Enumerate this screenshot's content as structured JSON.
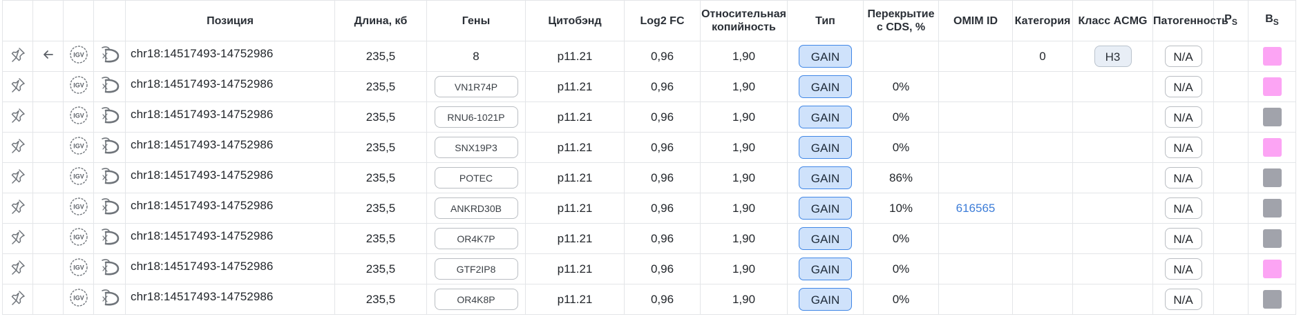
{
  "columns": {
    "position": "Позиция",
    "length": "Длина, кб",
    "genes": "Гены",
    "cytoband": "Цитобэнд",
    "log2fc": "Log2 FC",
    "rel_copy_1": "Относительная",
    "rel_copy_2": "копийность",
    "type": "Тип",
    "cds_1": "Перекрытие",
    "cds_2": "с CDS, %",
    "omim": "OMIM ID",
    "category": "Категория",
    "acmg": "Класс ACMG",
    "pathogenicity": "Патогенность",
    "ps_main": "P",
    "ps_sub": "S",
    "bs_main": "B",
    "bs_sub": "S"
  },
  "colors": {
    "pink": "#fca4f4",
    "gray": "#a1a3ab",
    "type_bg": "#cfe2fb",
    "type_border": "#3f86e6",
    "link": "#3d7dd8"
  },
  "rows": [
    {
      "position": "chr18:14517493-14752986",
      "length": "235,5",
      "gene": "8",
      "cytoband": "p11.21",
      "log2fc": "0,96",
      "relcopy": "1,90",
      "type": "GAIN",
      "cds": "",
      "omim": "",
      "category": "0",
      "acmg": "H3",
      "pathogenicity": "N/A",
      "bs_color": "pink",
      "back_arrow": true
    },
    {
      "position": "chr18:14517493-14752986",
      "length": "235,5",
      "gene": "VN1R74P",
      "cytoband": "p11.21",
      "log2fc": "0,96",
      "relcopy": "1,90",
      "type": "GAIN",
      "cds": "0%",
      "omim": "",
      "category": "",
      "acmg": "",
      "pathogenicity": "N/A",
      "bs_color": "pink"
    },
    {
      "position": "chr18:14517493-14752986",
      "length": "235,5",
      "gene": "RNU6-1021P",
      "cytoband": "p11.21",
      "log2fc": "0,96",
      "relcopy": "1,90",
      "type": "GAIN",
      "cds": "0%",
      "omim": "",
      "category": "",
      "acmg": "",
      "pathogenicity": "N/A",
      "bs_color": "gray"
    },
    {
      "position": "chr18:14517493-14752986",
      "length": "235,5",
      "gene": "SNX19P3",
      "cytoband": "p11.21",
      "log2fc": "0,96",
      "relcopy": "1,90",
      "type": "GAIN",
      "cds": "0%",
      "omim": "",
      "category": "",
      "acmg": "",
      "pathogenicity": "N/A",
      "bs_color": "pink"
    },
    {
      "position": "chr18:14517493-14752986",
      "length": "235,5",
      "gene": "POTEC",
      "cytoband": "p11.21",
      "log2fc": "0,96",
      "relcopy": "1,90",
      "type": "GAIN",
      "cds": "86%",
      "omim": "",
      "category": "",
      "acmg": "",
      "pathogenicity": "N/A",
      "bs_color": "gray"
    },
    {
      "position": "chr18:14517493-14752986",
      "length": "235,5",
      "gene": "ANKRD30B",
      "cytoband": "p11.21",
      "log2fc": "0,96",
      "relcopy": "1,90",
      "type": "GAIN",
      "cds": "10%",
      "omim": "616565",
      "category": "",
      "acmg": "",
      "pathogenicity": "N/A",
      "bs_color": "gray"
    },
    {
      "position": "chr18:14517493-14752986",
      "length": "235,5",
      "gene": "OR4K7P",
      "cytoband": "p11.21",
      "log2fc": "0,96",
      "relcopy": "1,90",
      "type": "GAIN",
      "cds": "0%",
      "omim": "",
      "category": "",
      "acmg": "",
      "pathogenicity": "N/A",
      "bs_color": "gray"
    },
    {
      "position": "chr18:14517493-14752986",
      "length": "235,5",
      "gene": "GTF2IP8",
      "cytoband": "p11.21",
      "log2fc": "0,96",
      "relcopy": "1,90",
      "type": "GAIN",
      "cds": "0%",
      "omim": "",
      "category": "",
      "acmg": "",
      "pathogenicity": "N/A",
      "bs_color": "pink"
    },
    {
      "position": "chr18:14517493-14752986",
      "length": "235,5",
      "gene": "OR4K8P",
      "cytoband": "p11.21",
      "log2fc": "0,96",
      "relcopy": "1,90",
      "type": "GAIN",
      "cds": "0%",
      "omim": "",
      "category": "",
      "acmg": "",
      "pathogenicity": "N/A",
      "bs_color": "gray"
    }
  ]
}
